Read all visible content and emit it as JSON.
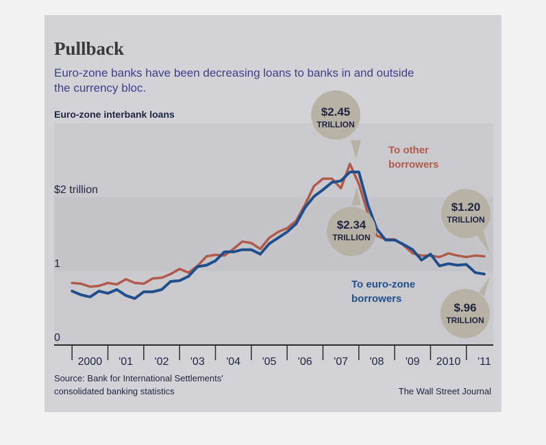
{
  "chart_data": {
    "type": "line",
    "title": "Pullback",
    "subtitle_line1": "Euro-zone banks have been decreasing loans to banks in and outside",
    "subtitle_line2": "the currency bloc.",
    "panel_label": "Euro-zone interbank loans",
    "y_tick_labels": [
      "0",
      "1",
      "$2 trillion"
    ],
    "y_ticks": [
      0,
      1,
      2
    ],
    "ylim": [
      0,
      3
    ],
    "xlim": [
      1999.5,
      2011.75
    ],
    "x_tick_labels": [
      "2000",
      "'01",
      "'02",
      "'03",
      "'04",
      "'05",
      "'06",
      "'07",
      "'08",
      "'09",
      "2010",
      "'11"
    ],
    "x_ticks": [
      2000.5,
      2001.5,
      2002.5,
      2003.5,
      2004.5,
      2005.5,
      2006.5,
      2007.5,
      2008.5,
      2009.5,
      2010.5,
      2011.5
    ],
    "x": [
      2000.0,
      2000.25,
      2000.5,
      2000.75,
      2001.0,
      2001.25,
      2001.5,
      2001.75,
      2002.0,
      2002.25,
      2002.5,
      2002.75,
      2003.0,
      2003.25,
      2003.5,
      2003.75,
      2004.0,
      2004.25,
      2004.5,
      2004.75,
      2005.0,
      2005.25,
      2005.5,
      2005.75,
      2006.0,
      2006.25,
      2006.5,
      2006.75,
      2007.0,
      2007.25,
      2007.5,
      2007.75,
      2008.0,
      2008.25,
      2008.5,
      2008.75,
      2009.0,
      2009.25,
      2009.5,
      2009.75,
      2010.0,
      2010.25,
      2010.5,
      2010.75,
      2011.0,
      2011.25,
      2011.5
    ],
    "series": [
      {
        "name": "To other borrowers",
        "color": "#b15a4c",
        "values": [
          0.84,
          0.83,
          0.79,
          0.8,
          0.84,
          0.82,
          0.89,
          0.84,
          0.83,
          0.9,
          0.91,
          0.96,
          1.03,
          0.98,
          1.07,
          1.2,
          1.22,
          1.21,
          1.3,
          1.4,
          1.38,
          1.3,
          1.45,
          1.53,
          1.58,
          1.68,
          1.9,
          2.15,
          2.25,
          2.25,
          2.12,
          2.45,
          2.18,
          1.78,
          1.48,
          1.43,
          1.43,
          1.35,
          1.24,
          1.21,
          1.21,
          1.19,
          1.24,
          1.21,
          1.19,
          1.21,
          1.2
        ]
      },
      {
        "name": "To euro-zone borrowers",
        "color": "#1f4e8c",
        "values": [
          0.73,
          0.68,
          0.65,
          0.73,
          0.7,
          0.75,
          0.67,
          0.63,
          0.72,
          0.72,
          0.75,
          0.86,
          0.87,
          0.93,
          1.06,
          1.08,
          1.14,
          1.26,
          1.26,
          1.29,
          1.29,
          1.23,
          1.37,
          1.45,
          1.53,
          1.64,
          1.86,
          2.01,
          2.1,
          2.2,
          2.22,
          2.34,
          2.34,
          1.9,
          1.57,
          1.42,
          1.42,
          1.36,
          1.29,
          1.15,
          1.23,
          1.07,
          1.1,
          1.08,
          1.09,
          0.98,
          0.96
        ]
      }
    ],
    "series_label_other": [
      "To other",
      "borrowers"
    ],
    "series_label_euro": [
      "To euro-zone",
      "borrowers"
    ],
    "annotations": [
      {
        "value": "$2.45",
        "unit": "TRILLION",
        "x": 2007.75,
        "y": 2.45
      },
      {
        "value": "$2.34",
        "unit": "TRILLION",
        "x": 2007.5,
        "y": 2.34
      },
      {
        "value": "$1.20",
        "unit": "TRILLION",
        "x": 2011.5,
        "y": 1.2
      },
      {
        "value": "$.96",
        "unit": "TRILLION",
        "x": 2011.5,
        "y": 0.96
      }
    ],
    "source_line1": "Source: Bank for International Settlements'",
    "source_line2": "consolidated banking statistics",
    "credit": "The Wall Street Journal",
    "grid": "shaded bands"
  }
}
